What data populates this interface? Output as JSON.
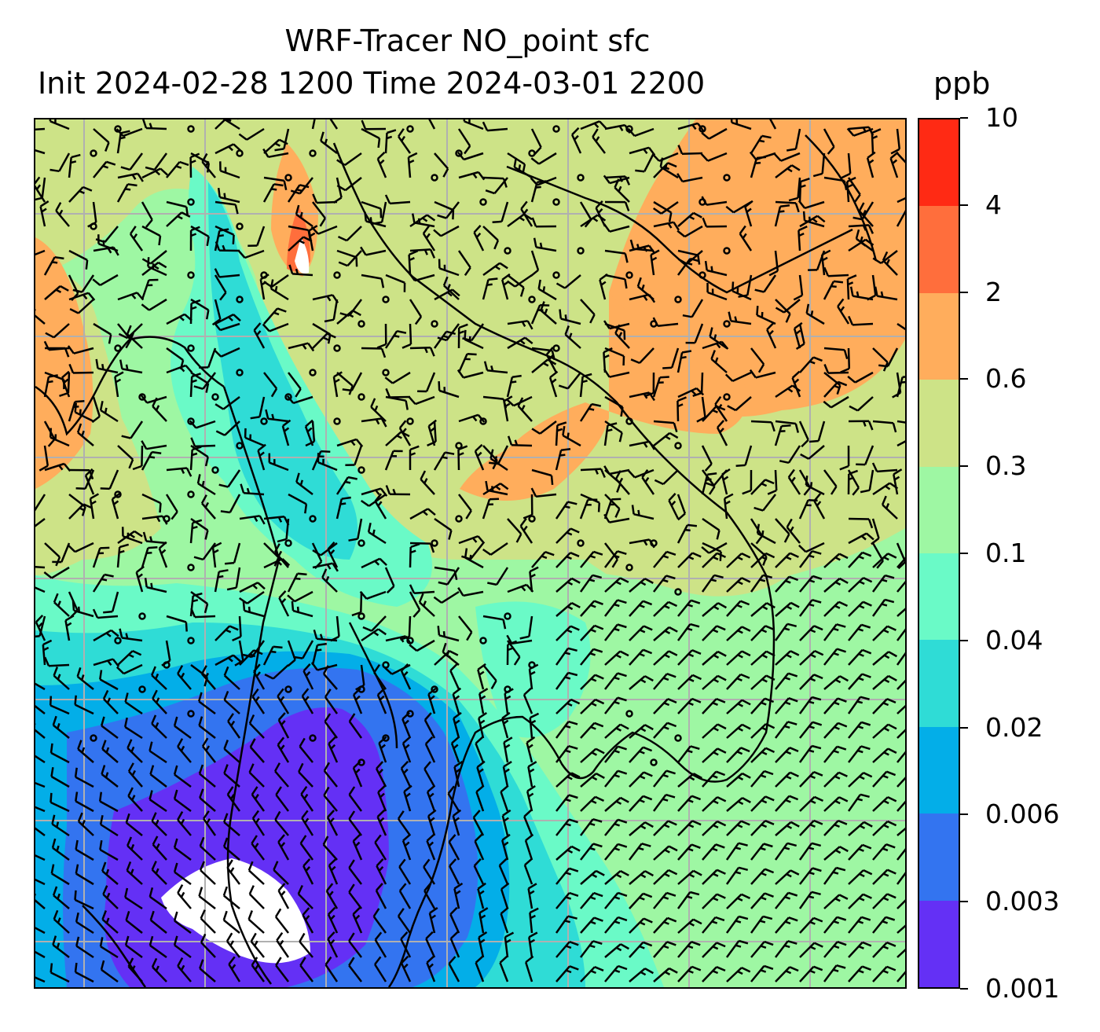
{
  "title": {
    "line1": "WRF-Tracer NO_point sfc",
    "line2": "Init 2024-02-28 1200 Time 2024-03-01 2200"
  },
  "colorbar": {
    "unit": "ppb",
    "ticks": [
      "10",
      "4",
      "2",
      "0.6",
      "0.3",
      "0.1",
      "0.04",
      "0.02",
      "0.006",
      "0.003",
      "0.001"
    ],
    "colors": [
      "#ff2a14",
      "#ff6e3c",
      "#ffad5c",
      "#cde387",
      "#9ef7a3",
      "#6afac7",
      "#2fdcd6",
      "#03aee8",
      "#3374f0",
      "#6430f5"
    ]
  },
  "map": {
    "background_color": "#9ef7a3",
    "gridline_color": "#b0b0b0",
    "coastline_color": "#000000",
    "wind_barb_color": "#000000",
    "features": [
      "wind-barbs",
      "coastlines",
      "lat-lon-gridlines"
    ]
  }
}
